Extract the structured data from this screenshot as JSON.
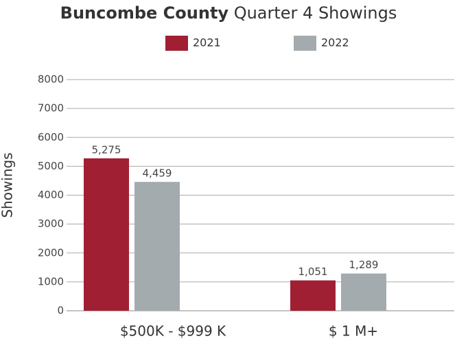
{
  "chart_data": {
    "type": "bar",
    "title": [
      "Buncombe County",
      "Quarter 4 Showings"
    ],
    "ylabel": "Showings",
    "categories": [
      "$500K - $999 K",
      "$ 1 M+"
    ],
    "series": [
      {
        "name": "2021",
        "color": "#a11f33",
        "values": [
          5275,
          1051
        ],
        "value_labels": [
          "5,275",
          "1,051"
        ]
      },
      {
        "name": "2022",
        "color": "#a4abaf",
        "values": [
          4459,
          1289
        ],
        "value_labels": [
          "4,459",
          "1,289"
        ]
      }
    ],
    "ylim": [
      0,
      8000
    ],
    "yticks": [
      0,
      1000,
      2000,
      3000,
      4000,
      5000,
      6000,
      7000,
      8000
    ],
    "grid": true
  }
}
